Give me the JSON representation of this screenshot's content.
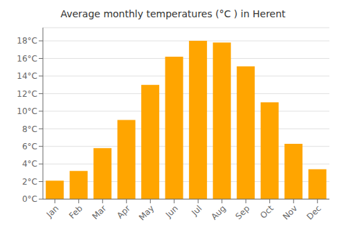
{
  "chart_data": {
    "type": "bar",
    "title": "Average monthly temperatures (°C ) in Herent",
    "categories": [
      "Jan",
      "Feb",
      "Mar",
      "Apr",
      "May",
      "Jun",
      "Jul",
      "Aug",
      "Sep",
      "Oct",
      "Nov",
      "Dec"
    ],
    "values": [
      2.1,
      3.2,
      5.8,
      9.0,
      13.0,
      16.2,
      18.0,
      17.8,
      15.1,
      11.0,
      6.3,
      3.4
    ],
    "color": "#FFA500",
    "ylim": [
      0,
      19.5
    ],
    "yticks": [
      {
        "value": 0,
        "label": "0°C"
      },
      {
        "value": 2,
        "label": "2°C"
      },
      {
        "value": 4,
        "label": "4°C"
      },
      {
        "value": 6,
        "label": "6°C"
      },
      {
        "value": 8,
        "label": "8°C"
      },
      {
        "value": 10,
        "label": "10°C"
      },
      {
        "value": 12,
        "label": "12°C"
      },
      {
        "value": 14,
        "label": "14°C"
      },
      {
        "value": 16,
        "label": "16°C"
      },
      {
        "value": 18,
        "label": "18°C"
      }
    ],
    "grid": true
  }
}
